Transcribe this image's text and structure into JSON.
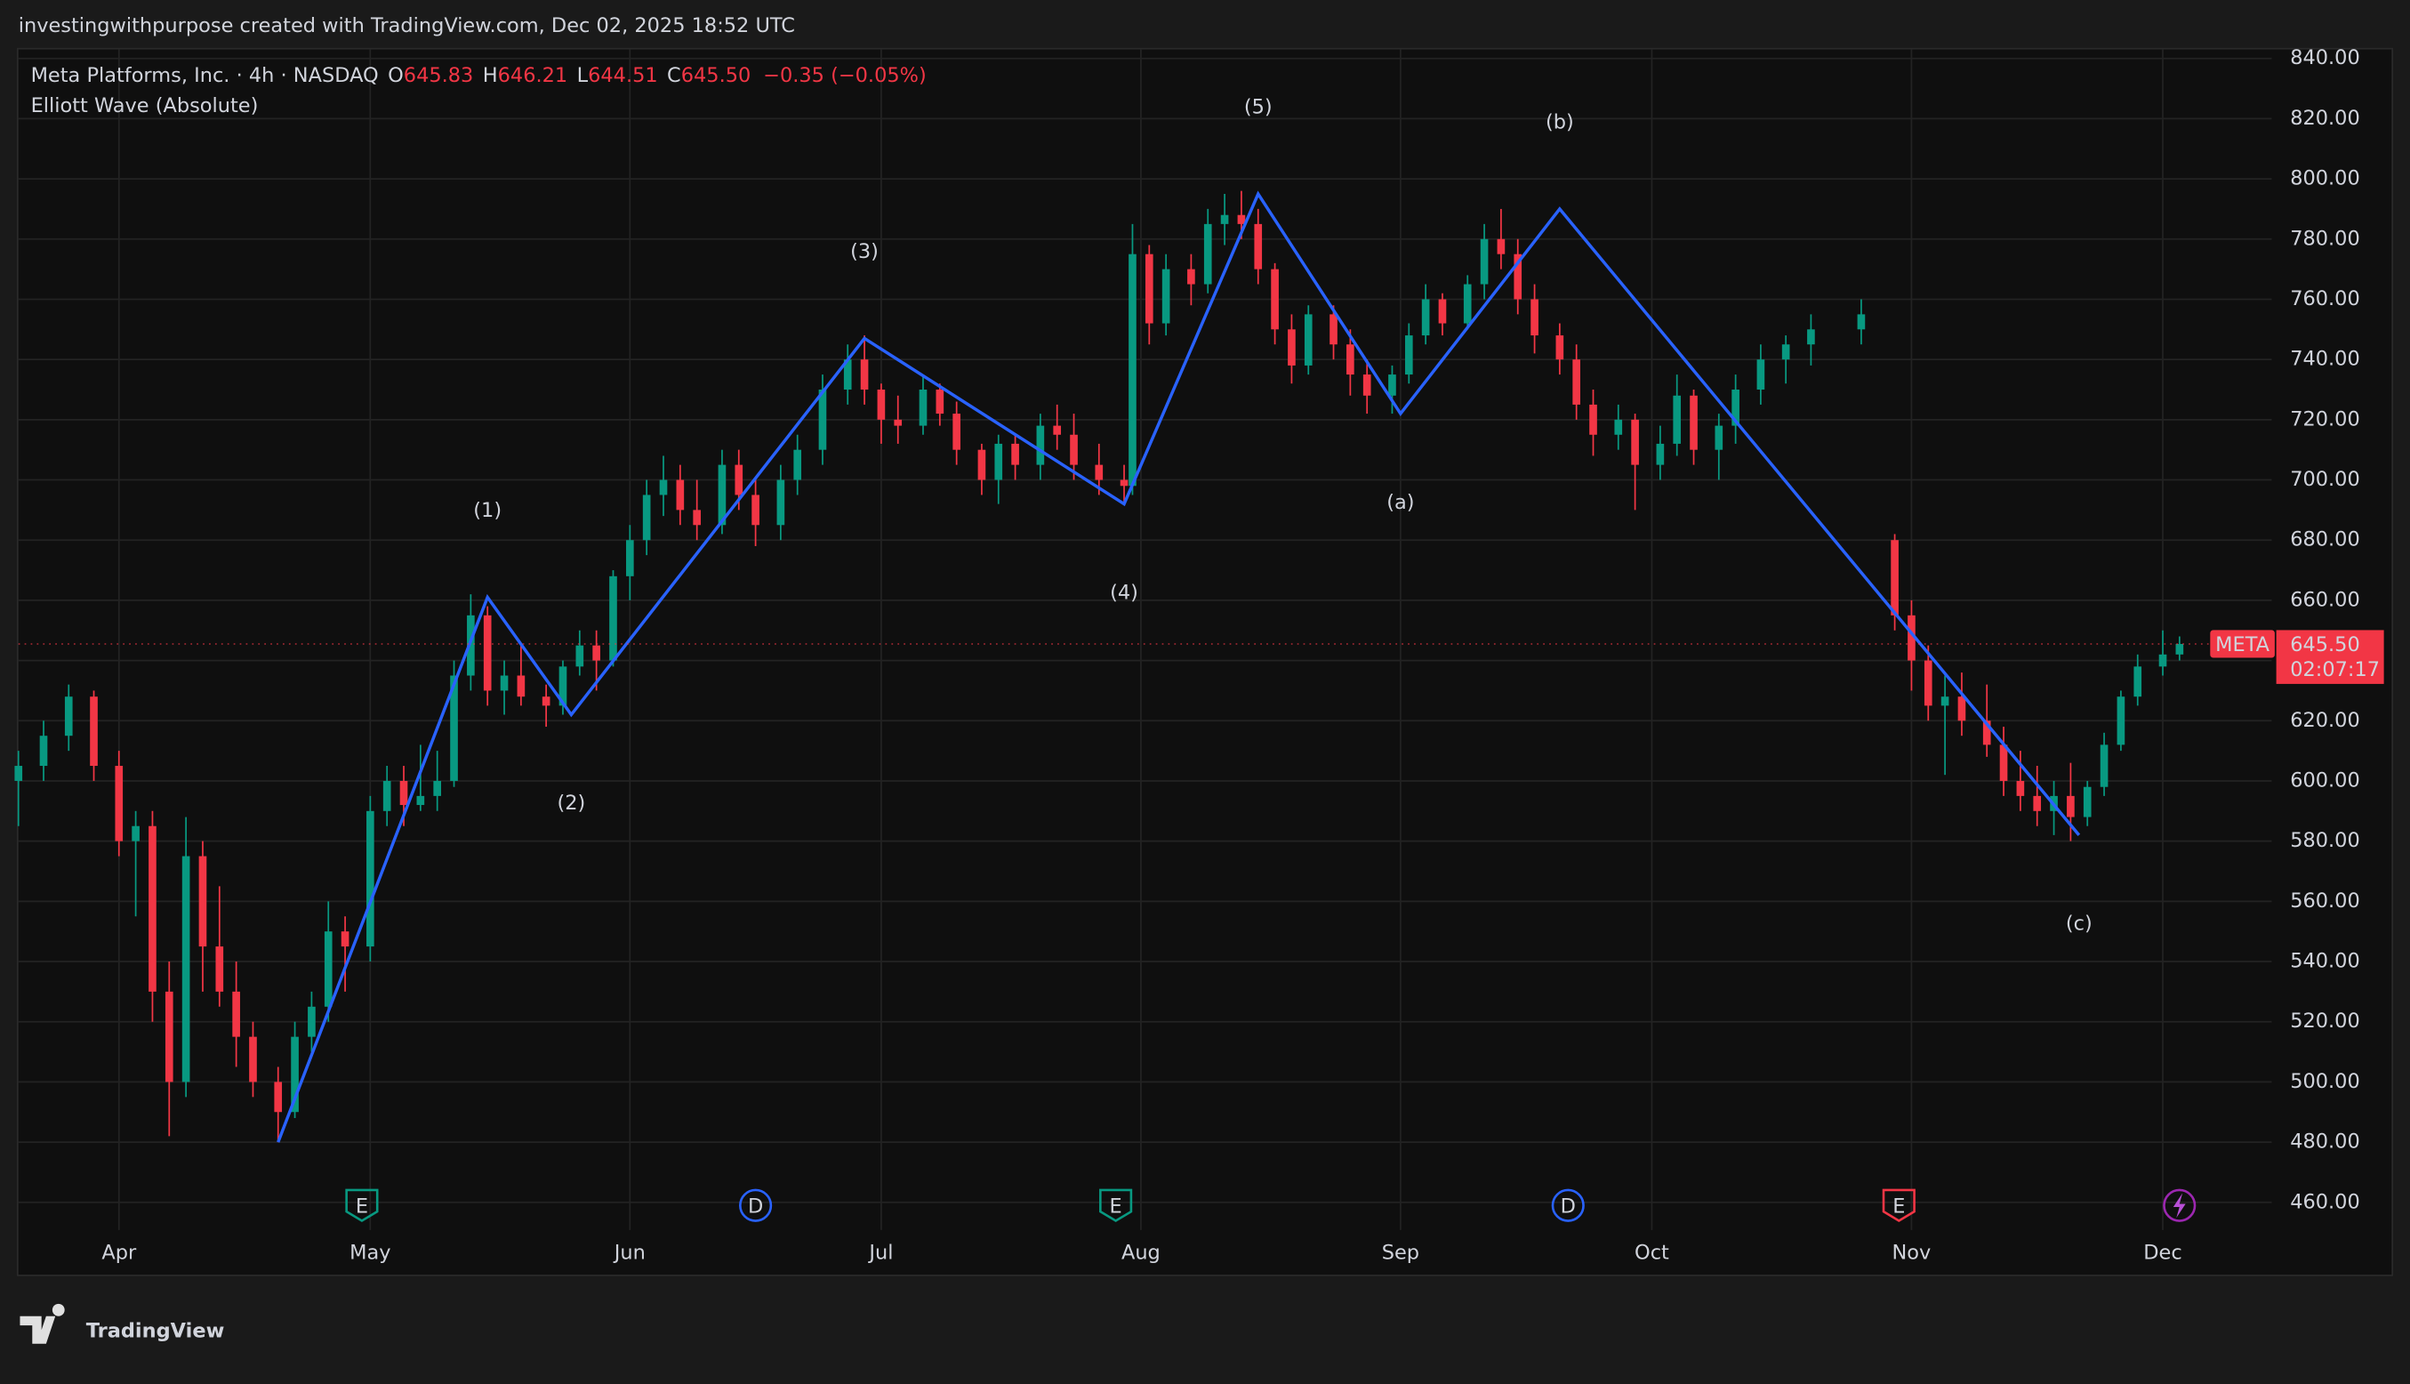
{
  "header": {
    "credit": "investingwithpurpose created with TradingView.com, Dec 02, 2025 18:52 UTC"
  },
  "footer": {
    "brand": "TradingView"
  },
  "chart_data": {
    "type": "candlestick",
    "title": "Meta Platforms, Inc. · 4h · NASDAQ",
    "subtitle": "Elliott Wave (Absolute)",
    "ohlc_legend": [
      {
        "key": "O",
        "value": "645.83"
      },
      {
        "key": "H",
        "value": "646.21"
      },
      {
        "key": "L",
        "value": "644.51"
      },
      {
        "key": "C",
        "value": "645.50"
      }
    ],
    "change": "−0.35 (−0.05%)",
    "up_color": "#089981",
    "down_color": "#f23645",
    "candles": [
      [
        79,
        600,
        610,
        585,
        605
      ],
      [
        82,
        605,
        620,
        600,
        615
      ],
      [
        85,
        615,
        632,
        610,
        628
      ],
      [
        88,
        628,
        630,
        600,
        605
      ],
      [
        91,
        605,
        610,
        575,
        580
      ],
      [
        93,
        580,
        590,
        555,
        585
      ],
      [
        95,
        585,
        590,
        520,
        530
      ],
      [
        97,
        530,
        540,
        482,
        500
      ],
      [
        99,
        500,
        588,
        495,
        575
      ],
      [
        101,
        575,
        580,
        530,
        545
      ],
      [
        103,
        545,
        565,
        525,
        530
      ],
      [
        105,
        530,
        540,
        505,
        515
      ],
      [
        107,
        515,
        520,
        495,
        500
      ],
      [
        110,
        500,
        505,
        480,
        490
      ],
      [
        112,
        490,
        520,
        488,
        515
      ],
      [
        114,
        515,
        530,
        510,
        525
      ],
      [
        116,
        525,
        560,
        520,
        550
      ],
      [
        118,
        550,
        555,
        530,
        545
      ],
      [
        121,
        545,
        595,
        540,
        590
      ],
      [
        123,
        590,
        605,
        585,
        600
      ],
      [
        125,
        600,
        605,
        585,
        592
      ],
      [
        127,
        592,
        612,
        590,
        595
      ],
      [
        129,
        595,
        610,
        590,
        600
      ],
      [
        131,
        600,
        640,
        598,
        635
      ],
      [
        133,
        635,
        662,
        630,
        655
      ],
      [
        135,
        655,
        658,
        625,
        630
      ],
      [
        137,
        630,
        640,
        622,
        635
      ],
      [
        139,
        635,
        645,
        625,
        628
      ],
      [
        142,
        628,
        632,
        618,
        625
      ],
      [
        144,
        625,
        640,
        622,
        638
      ],
      [
        146,
        638,
        650,
        635,
        645
      ],
      [
        148,
        645,
        650,
        630,
        640
      ],
      [
        150,
        640,
        670,
        638,
        668
      ],
      [
        152,
        668,
        685,
        660,
        680
      ],
      [
        154,
        680,
        700,
        675,
        695
      ],
      [
        156,
        695,
        708,
        688,
        700
      ],
      [
        158,
        700,
        705,
        685,
        690
      ],
      [
        160,
        690,
        700,
        680,
        685
      ],
      [
        163,
        685,
        710,
        682,
        705
      ],
      [
        165,
        705,
        710,
        690,
        695
      ],
      [
        167,
        695,
        700,
        678,
        685
      ],
      [
        170,
        685,
        705,
        680,
        700
      ],
      [
        172,
        700,
        715,
        695,
        710
      ],
      [
        175,
        710,
        735,
        705,
        730
      ],
      [
        178,
        730,
        745,
        725,
        740
      ],
      [
        180,
        740,
        748,
        725,
        730
      ],
      [
        182,
        730,
        732,
        712,
        720
      ],
      [
        184,
        720,
        728,
        712,
        718
      ],
      [
        187,
        718,
        735,
        715,
        730
      ],
      [
        189,
        730,
        732,
        718,
        722
      ],
      [
        191,
        722,
        726,
        705,
        710
      ],
      [
        194,
        710,
        712,
        695,
        700
      ],
      [
        196,
        700,
        715,
        692,
        712
      ],
      [
        198,
        712,
        715,
        700,
        705
      ],
      [
        201,
        705,
        722,
        700,
        718
      ],
      [
        203,
        718,
        725,
        710,
        715
      ],
      [
        205,
        715,
        722,
        700,
        705
      ],
      [
        208,
        705,
        712,
        695,
        700
      ],
      [
        211,
        700,
        705,
        692,
        698
      ],
      [
        212,
        698,
        785,
        695,
        775
      ],
      [
        214,
        775,
        778,
        745,
        752
      ],
      [
        216,
        752,
        775,
        748,
        770
      ],
      [
        219,
        770,
        775,
        758,
        765
      ],
      [
        221,
        765,
        790,
        762,
        785
      ],
      [
        223,
        785,
        795,
        778,
        788
      ],
      [
        225,
        788,
        796,
        780,
        785
      ],
      [
        227,
        785,
        790,
        765,
        770
      ],
      [
        229,
        770,
        772,
        745,
        750
      ],
      [
        231,
        750,
        755,
        732,
        738
      ],
      [
        233,
        738,
        758,
        735,
        755
      ],
      [
        236,
        755,
        758,
        740,
        745
      ],
      [
        238,
        745,
        750,
        728,
        735
      ],
      [
        240,
        735,
        740,
        722,
        728
      ],
      [
        243,
        728,
        738,
        722,
        735
      ],
      [
        245,
        735,
        752,
        732,
        748
      ],
      [
        247,
        748,
        765,
        745,
        760
      ],
      [
        249,
        760,
        762,
        748,
        752
      ],
      [
        252,
        752,
        768,
        750,
        765
      ],
      [
        254,
        765,
        785,
        760,
        780
      ],
      [
        256,
        780,
        790,
        770,
        775
      ],
      [
        258,
        775,
        780,
        755,
        760
      ],
      [
        260,
        760,
        765,
        742,
        748
      ],
      [
        263,
        748,
        752,
        735,
        740
      ],
      [
        265,
        740,
        745,
        720,
        725
      ],
      [
        267,
        725,
        730,
        708,
        715
      ],
      [
        270,
        715,
        725,
        710,
        720
      ],
      [
        272,
        720,
        722,
        690,
        705
      ],
      [
        275,
        705,
        718,
        700,
        712
      ],
      [
        277,
        712,
        735,
        708,
        728
      ],
      [
        279,
        728,
        730,
        705,
        710
      ],
      [
        282,
        710,
        722,
        700,
        718
      ],
      [
        284,
        718,
        735,
        712,
        730
      ],
      [
        287,
        730,
        745,
        725,
        740
      ],
      [
        290,
        740,
        748,
        732,
        745
      ],
      [
        293,
        745,
        755,
        738,
        750
      ],
      [
        299,
        750,
        760,
        745,
        755
      ],
      [
        303,
        680,
        682,
        650,
        655
      ],
      [
        305,
        655,
        660,
        630,
        640
      ],
      [
        307,
        640,
        645,
        620,
        625
      ],
      [
        309,
        625,
        635,
        602,
        628
      ],
      [
        311,
        628,
        636,
        615,
        620
      ],
      [
        314,
        620,
        632,
        608,
        612
      ],
      [
        316,
        612,
        618,
        595,
        600
      ],
      [
        318,
        600,
        610,
        590,
        595
      ],
      [
        320,
        595,
        605,
        585,
        590
      ],
      [
        322,
        590,
        600,
        582,
        595
      ],
      [
        324,
        595,
        606,
        580,
        588
      ],
      [
        326,
        588,
        600,
        585,
        598
      ],
      [
        328,
        598,
        616,
        595,
        612
      ],
      [
        330,
        612,
        630,
        610,
        628
      ],
      [
        332,
        628,
        642,
        625,
        638
      ],
      [
        335,
        638,
        650,
        635,
        642
      ],
      [
        337,
        642,
        648,
        640,
        645.5
      ]
    ],
    "wave": {
      "color": "#2962ff",
      "x": [
        110,
        135,
        145,
        180,
        211,
        227,
        244,
        263,
        325
      ],
      "y": [
        480,
        661,
        622,
        747,
        692,
        795,
        722,
        790,
        582
      ],
      "labels": [
        null,
        "(1)",
        "(2)",
        "(3)",
        "(4)",
        "(5)",
        "(a)",
        "(b)",
        "(c)"
      ]
    },
    "events": [
      {
        "x": 120,
        "label": "E",
        "color": "#089981"
      },
      {
        "x": 167,
        "label": "D",
        "color": "#2962ff"
      },
      {
        "x": 210,
        "label": "E",
        "color": "#089981"
      },
      {
        "x": 264,
        "label": "D",
        "color": "#2962ff"
      },
      {
        "x": 303.5,
        "label": "E",
        "color": "#f23645"
      }
    ],
    "last_price": {
      "value": 645.5,
      "label": "645.50",
      "countdown": "02:07:17",
      "symbol": "META"
    },
    "xlim": [
      79,
      348
    ],
    "xticks": [
      {
        "value": 91,
        "label": "Apr"
      },
      {
        "value": 121,
        "label": "May"
      },
      {
        "value": 152,
        "label": "Jun"
      },
      {
        "value": 182,
        "label": "Jul"
      },
      {
        "value": 213,
        "label": "Aug"
      },
      {
        "value": 244,
        "label": "Sep"
      },
      {
        "value": 274,
        "label": "Oct"
      },
      {
        "value": 305,
        "label": "Nov"
      },
      {
        "value": 335,
        "label": "Dec"
      }
    ],
    "ylim": [
      436.5,
      843
    ],
    "yticks": [
      {
        "value": 460,
        "label": "460.00"
      },
      {
        "value": 480,
        "label": "480.00"
      },
      {
        "value": 500,
        "label": "500.00"
      },
      {
        "value": 520,
        "label": "520.00"
      },
      {
        "value": 540,
        "label": "540.00"
      },
      {
        "value": 560,
        "label": "560.00"
      },
      {
        "value": 580,
        "label": "580.00"
      },
      {
        "value": 600,
        "label": "600.00"
      },
      {
        "value": 620,
        "label": "620.00"
      },
      {
        "value": 640,
        "label": "640.00"
      },
      {
        "value": 660,
        "label": "660.00"
      },
      {
        "value": 680,
        "label": "680.00"
      },
      {
        "value": 700,
        "label": "700.00"
      },
      {
        "value": 720,
        "label": "720.00"
      },
      {
        "value": 740,
        "label": "740.00"
      },
      {
        "value": 760,
        "label": "760.00"
      },
      {
        "value": 780,
        "label": "780.00"
      },
      {
        "value": 800,
        "label": "800.00"
      },
      {
        "value": 820,
        "label": "820.00"
      },
      {
        "value": 840,
        "label": "840.00"
      }
    ],
    "grid": true
  }
}
